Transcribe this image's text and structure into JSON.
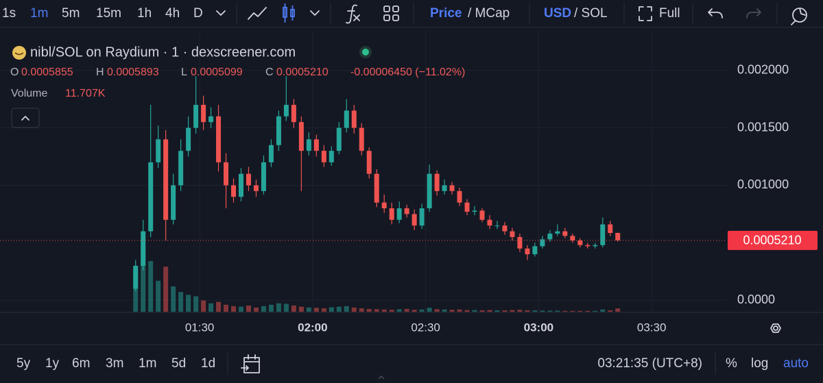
{
  "toolbar": {
    "intervals": [
      "1s",
      "1m",
      "5m",
      "15m",
      "1h",
      "4h",
      "D"
    ],
    "price_toggle": [
      "Price",
      "/ MCap"
    ],
    "currency_toggle": [
      "USD",
      "/ SOL"
    ],
    "full": "Full"
  },
  "legend": {
    "title": "nibl/SOL on Raydium · 1 · dexscreener.com",
    "ohlc": [
      {
        "key": "O",
        "value": "0.0005855"
      },
      {
        "key": "H",
        "value": "0.0005893"
      },
      {
        "key": "L",
        "value": "0.0005099"
      },
      {
        "key": "C",
        "value": "0.0005210"
      }
    ],
    "change": "-0.00006450 (−11.02%)",
    "volume_label": "Volume",
    "volume_value": "11.707K"
  },
  "chart_data": {
    "type": "candlestick",
    "grid": true,
    "up_color": "#26a69a",
    "down_color": "#ef5350",
    "x": [
      73,
      75,
      77,
      79,
      81,
      83,
      85,
      87,
      89,
      91,
      93,
      95,
      97,
      99,
      101,
      103,
      105,
      107,
      109,
      111,
      113,
      115,
      117,
      119,
      121,
      123,
      125,
      127,
      129,
      131,
      133,
      135,
      137,
      139,
      141,
      143,
      145,
      147,
      149,
      151,
      153,
      155,
      157,
      159,
      161,
      163,
      165,
      167,
      169,
      171,
      173,
      175,
      177,
      179,
      181,
      183,
      185,
      187,
      189,
      191,
      193,
      195,
      197,
      199,
      201
    ],
    "open": [
      0.0001,
      0.0003,
      0.0006,
      0.0012,
      0.0014,
      0.0007,
      0.001,
      0.0013,
      0.0015,
      0.0017,
      0.00155,
      0.0016,
      0.0012,
      0.001,
      0.0009,
      0.0011,
      0.001,
      0.00095,
      0.0012,
      0.00135,
      0.0016,
      0.0017,
      0.00155,
      0.0013,
      0.0014,
      0.0013,
      0.0012,
      0.0013,
      0.0015,
      0.00165,
      0.0015,
      0.0013,
      0.0011,
      0.00085,
      0.0008,
      0.0007,
      0.0008,
      0.00075,
      0.00065,
      0.0008,
      0.0011,
      0.00095,
      0.001,
      0.00095,
      0.00085,
      0.00077,
      0.00078,
      0.0007,
      0.00065,
      0.00065,
      0.0006,
      0.00055,
      0.00045,
      0.0004,
      0.00047,
      0.00053,
      0.00058,
      0.0006,
      0.00056,
      0.00052,
      0.00048,
      0.00047,
      0.00048,
      0.00066,
      0.0005855
    ],
    "high": [
      0.00035,
      0.0007,
      0.0017,
      0.00152,
      0.00148,
      0.0011,
      0.0014,
      0.0016,
      0.00195,
      0.00178,
      0.00168,
      0.0017,
      0.00128,
      0.00106,
      0.00115,
      0.00116,
      0.00105,
      0.00126,
      0.0014,
      0.00165,
      0.00195,
      0.00175,
      0.0016,
      0.00146,
      0.00144,
      0.00135,
      0.00134,
      0.00155,
      0.00175,
      0.0017,
      0.00154,
      0.00133,
      0.00114,
      0.00092,
      0.00085,
      0.00086,
      0.00083,
      0.00079,
      0.00084,
      0.00118,
      0.00113,
      0.00105,
      0.00103,
      0.00098,
      0.00088,
      0.00082,
      0.0008,
      0.00074,
      0.00069,
      0.00068,
      0.00063,
      0.00058,
      0.00048,
      0.0005,
      0.00056,
      0.00061,
      0.00066,
      0.00063,
      0.00058,
      0.00054,
      0.0005,
      0.0005,
      0.00072,
      0.00069,
      0.0005893
    ],
    "low": [
      8e-05,
      0.00026,
      0.00055,
      0.00115,
      0.00052,
      0.00066,
      0.00095,
      0.00125,
      0.00145,
      0.00148,
      0.0015,
      0.00112,
      0.0008,
      0.00085,
      0.00086,
      0.00095,
      0.0009,
      0.00092,
      0.00116,
      0.0013,
      0.00156,
      0.0015,
      0.00095,
      0.00126,
      0.00125,
      0.00116,
      0.00117,
      0.00127,
      0.00146,
      0.00145,
      0.00126,
      0.00106,
      0.00081,
      0.00076,
      0.00066,
      0.00067,
      0.00072,
      0.00061,
      0.00062,
      0.00077,
      0.00091,
      0.00092,
      0.00092,
      0.00082,
      0.00074,
      0.00074,
      0.00068,
      0.00062,
      0.00062,
      0.00057,
      0.00052,
      0.00042,
      0.00035,
      0.00038,
      0.00045,
      0.00051,
      0.00056,
      0.00054,
      0.0005,
      0.00046,
      0.00045,
      0.00045,
      0.00046,
      0.00056,
      0.0005099
    ],
    "close": [
      0.0003,
      0.0006,
      0.0012,
      0.0014,
      0.0007,
      0.001,
      0.0013,
      0.0015,
      0.0017,
      0.00155,
      0.0016,
      0.0012,
      0.001,
      0.0009,
      0.0011,
      0.001,
      0.00095,
      0.0012,
      0.00135,
      0.0016,
      0.0017,
      0.00155,
      0.0013,
      0.0014,
      0.0013,
      0.0012,
      0.0013,
      0.0015,
      0.00165,
      0.0015,
      0.0013,
      0.0011,
      0.00085,
      0.0008,
      0.0007,
      0.0008,
      0.00075,
      0.00065,
      0.0008,
      0.0011,
      0.00095,
      0.001,
      0.00095,
      0.00085,
      0.00077,
      0.00078,
      0.0007,
      0.00065,
      0.00065,
      0.0006,
      0.00055,
      0.00045,
      0.0004,
      0.00047,
      0.00053,
      0.00058,
      0.0006,
      0.00056,
      0.00052,
      0.00048,
      0.00047,
      0.00048,
      0.00066,
      0.0005855,
      0.000521
    ],
    "volume": [
      150000,
      236000,
      180000,
      110000,
      160000,
      90000,
      70000,
      60000,
      55000,
      40000,
      30000,
      35000,
      25000,
      20000,
      18000,
      22000,
      15000,
      20000,
      25000,
      30000,
      28000,
      22000,
      18000,
      15000,
      14000,
      12000,
      16000,
      18000,
      20000,
      15000,
      12000,
      10000,
      9000,
      8000,
      7000,
      9000,
      10000,
      7000,
      8000,
      14000,
      9000,
      8000,
      7000,
      8000,
      6000,
      6000,
      5000,
      6000,
      5000,
      5000,
      6000,
      7000,
      5000,
      5000,
      4000,
      4000,
      4000,
      3000,
      3000,
      3000,
      3000,
      3000,
      8000,
      5000,
      11707
    ],
    "xlim": [
      37,
      230
    ],
    "xticks": [
      {
        "value": 90,
        "label": "01:30"
      },
      {
        "value": 120,
        "label": "02:00"
      },
      {
        "value": 150,
        "label": "02:30"
      },
      {
        "value": 180,
        "label": "03:00"
      },
      {
        "value": 210,
        "label": "03:30"
      }
    ],
    "ylim": [
      -0.0001,
      0.00235
    ],
    "yticks": [
      {
        "value": 0,
        "label": "0.0000"
      },
      {
        "value": 0.001,
        "label": "0.001000"
      },
      {
        "value": 0.0015,
        "label": "0.001500"
      },
      {
        "value": 0.002,
        "label": "0.002000"
      }
    ],
    "y2lim": [
      0,
      1000000
    ],
    "last_price": {
      "value": 0.000521,
      "label": "0.0005210"
    }
  },
  "footer": {
    "ranges": [
      "5y",
      "1y",
      "6m",
      "3m",
      "1m",
      "5d",
      "1d"
    ],
    "clock": "03:21:35 (UTC+8)",
    "options": [
      "%",
      "log",
      "auto"
    ]
  }
}
